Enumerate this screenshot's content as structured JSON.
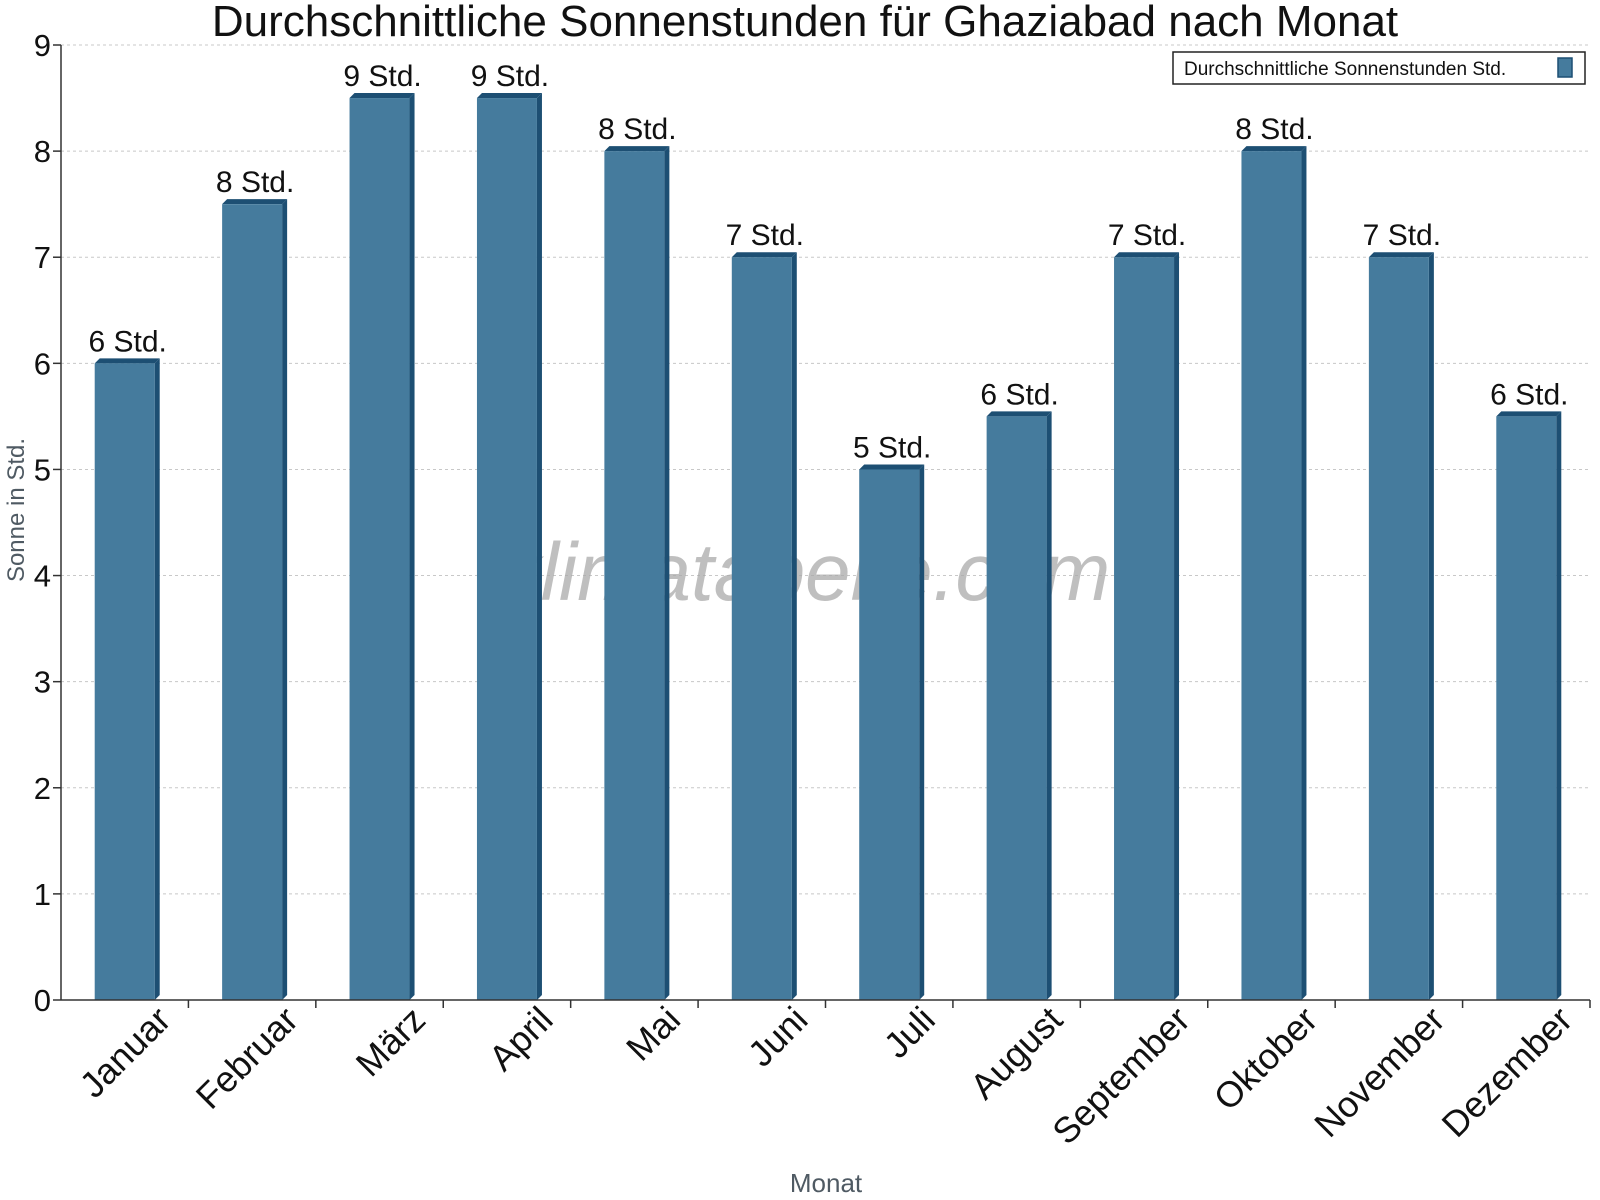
{
  "chart_data": {
    "type": "bar",
    "title": "Durchschnittliche Sonnenstunden für Ghaziabad nach Monat",
    "xlabel": "Monat",
    "ylabel": "Sonne in Std.",
    "ylim": [
      0,
      9
    ],
    "yticks": [
      "0",
      "1",
      "2",
      "3",
      "4",
      "5",
      "6",
      "7",
      "8",
      "9"
    ],
    "grid": true,
    "legend_position": "top-right",
    "categories": [
      "Januar",
      "Februar",
      "März",
      "April",
      "Mai",
      "Juni",
      "Juli",
      "August",
      "September",
      "Oktober",
      "November",
      "Dezember"
    ],
    "series": [
      {
        "name": "Durchschnittliche Sonnenstunden Std.",
        "color": "#457b9d",
        "values": [
          6,
          7.5,
          8.5,
          8.5,
          8,
          7,
          5,
          5.5,
          7,
          8,
          7,
          5.5
        ],
        "labels": [
          "6 Std.",
          "8 Std.",
          "9 Std.",
          "9 Std.",
          "8 Std.",
          "7 Std.",
          "5 Std.",
          "6 Std.",
          "7 Std.",
          "8 Std.",
          "7 Std.",
          "6 Std."
        ]
      }
    ]
  },
  "watermark": "klimatabelle.com"
}
